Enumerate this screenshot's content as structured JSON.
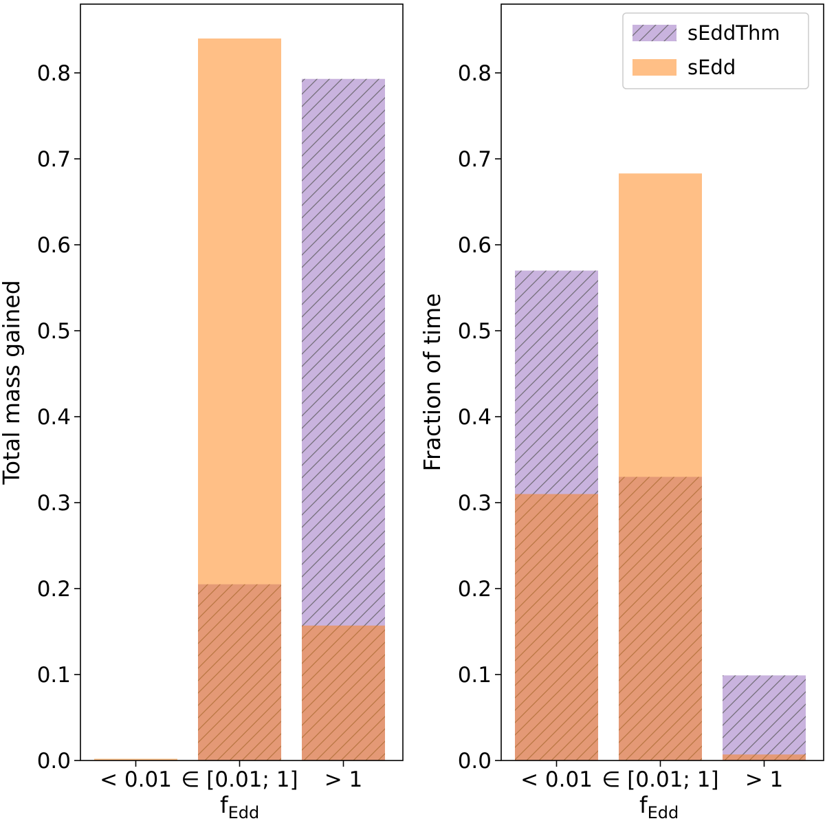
{
  "chart_data": [
    {
      "type": "bar",
      "panel": "left",
      "title": "",
      "xlabel_main": "f",
      "xlabel_sub": "Edd",
      "ylabel": "Total mass gained",
      "categories": [
        "< 0.01",
        "∈ [0.01; 1]",
        "> 1"
      ],
      "ylim": [
        0,
        0.88
      ],
      "yticks": [
        "0.0",
        "0.1",
        "0.2",
        "0.3",
        "0.4",
        "0.5",
        "0.6",
        "0.7",
        "0.8"
      ],
      "legend": false,
      "series": [
        {
          "name": "sEddThm",
          "values": [
            0.0,
            0.205,
            0.793
          ],
          "color": "#9467bd",
          "hatch": true
        },
        {
          "name": "sEdd",
          "values": [
            0.002,
            0.84,
            0.157
          ],
          "color": "#ff7f0e",
          "hatch": false
        }
      ]
    },
    {
      "type": "bar",
      "panel": "right",
      "title": "",
      "xlabel_main": "f",
      "xlabel_sub": "Edd",
      "ylabel": "Fraction of time",
      "categories": [
        "< 0.01",
        "∈ [0.01; 1]",
        "> 1"
      ],
      "ylim": [
        0,
        0.88
      ],
      "yticks": [
        "0.0",
        "0.1",
        "0.2",
        "0.3",
        "0.4",
        "0.5",
        "0.6",
        "0.7",
        "0.8"
      ],
      "legend": true,
      "legend_position": "top-right",
      "series": [
        {
          "name": "sEddThm",
          "values": [
            0.57,
            0.33,
            0.099
          ],
          "color": "#9467bd",
          "hatch": true
        },
        {
          "name": "sEdd",
          "values": [
            0.31,
            0.683,
            0.007
          ],
          "color": "#ff7f0e",
          "hatch": false
        }
      ]
    }
  ]
}
